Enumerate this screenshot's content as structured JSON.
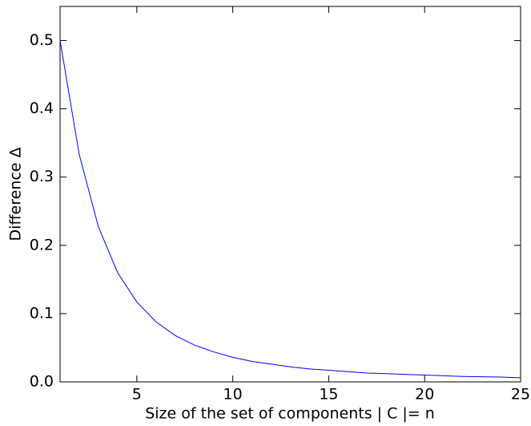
{
  "chart_data": {
    "type": "line",
    "x_label": "Size of the set of components | C |= n",
    "y_label": "Difference Δ",
    "x": [
      1,
      2,
      3,
      4,
      5,
      6,
      7,
      8,
      9,
      10,
      11,
      12,
      13,
      14,
      15,
      16,
      17,
      18,
      19,
      20,
      21,
      22,
      23,
      24,
      25
    ],
    "series": [
      {
        "name": "Δ",
        "color": "#0000ff",
        "values": [
          0.5,
          0.333,
          0.227,
          0.16,
          0.117,
          0.088,
          0.068,
          0.054,
          0.044,
          0.036,
          0.03,
          0.026,
          0.022,
          0.019,
          0.017,
          0.015,
          0.013,
          0.012,
          0.011,
          0.01,
          0.009,
          0.008,
          0.0075,
          0.007,
          0.006
        ]
      }
    ],
    "xlim": [
      1,
      25
    ],
    "ylim": [
      0,
      0.55
    ],
    "xticks": [
      5,
      10,
      15,
      20,
      25
    ],
    "yticks": [
      {
        "value": 0,
        "label": "0.0"
      },
      0.1,
      0.2,
      0.3,
      0.4,
      0.5
    ]
  }
}
